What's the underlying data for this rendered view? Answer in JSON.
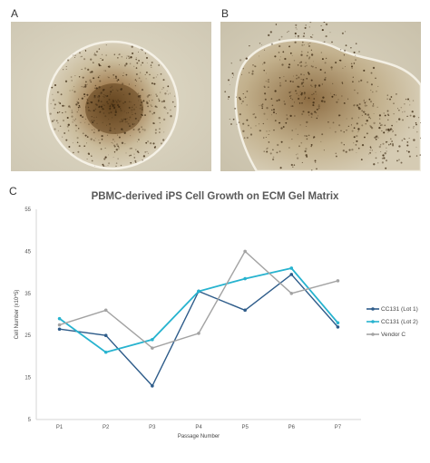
{
  "panels": {
    "a_label": "A",
    "b_label": "B",
    "c_label": "C"
  },
  "colors": {
    "lot1": "#2e5c8a",
    "lot2": "#27b3cf",
    "vendor": "#a3a3a3",
    "axis": "#cfcfcf",
    "title": "#595959"
  },
  "chart_data": {
    "type": "line",
    "title": "PBMC-derived iPS Cell Growth on ECM Gel Matrix",
    "xlabel": "Passage Number",
    "ylabel": "Cell Number (x10^5)",
    "categories": [
      "P1",
      "P2",
      "P3",
      "P4",
      "P5",
      "P6",
      "P7"
    ],
    "ylim": [
      5,
      55
    ],
    "yticks": [
      5,
      15,
      25,
      35,
      45,
      55
    ],
    "legend_position": "right",
    "grid": false,
    "series": [
      {
        "name": "CC131 (Lot 1)",
        "values": [
          26.5,
          25,
          13,
          35.5,
          31,
          39.5,
          27
        ]
      },
      {
        "name": "CC131 (Lot 2)",
        "values": [
          29,
          21,
          24,
          35.5,
          38.5,
          41,
          28
        ]
      },
      {
        "name": "Vendor C",
        "values": [
          27.5,
          31,
          22,
          25.5,
          45,
          35,
          38
        ]
      }
    ]
  }
}
